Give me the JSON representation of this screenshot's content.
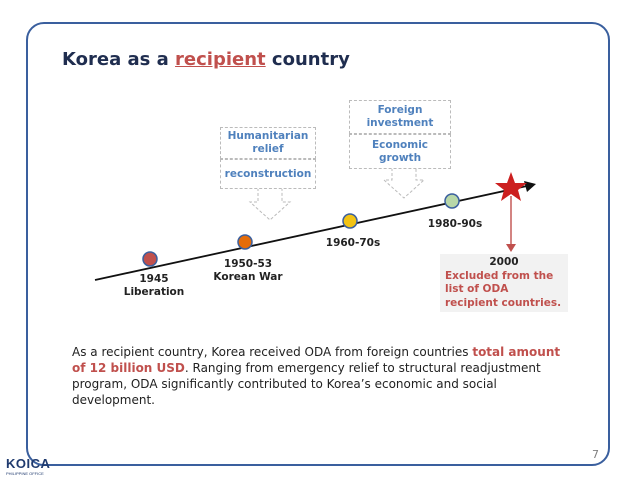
{
  "title": {
    "prefix": "Korea as a ",
    "highlight": "recipient",
    "suffix": " country"
  },
  "timeline": {
    "points": [
      {
        "label": "1945\nLiberation",
        "color": "#c0504d"
      },
      {
        "label": "1950-53\nKorean War",
        "color": "#e46c0a"
      },
      {
        "label": "1960-70s",
        "color": "#f2c314"
      },
      {
        "label": "1980-90s",
        "color": "#b8d7a8"
      }
    ],
    "star_color": "#cc1f1f"
  },
  "callouts": {
    "humanitarian": "Humanitarian\nrelief",
    "reconstruction": "reconstruction",
    "foreign_investment": "Foreign\ninvestment",
    "economic_growth": "Economic\ngrowth"
  },
  "milestone_2000": {
    "year": "2000",
    "text": "Excluded from the list of ODA recipient countries."
  },
  "body": {
    "part1": "As a recipient country, Korea received ODA from foreign countries ",
    "emphasis": "total amount of 12 billion USD",
    "part2": ". Ranging from emergency relief to structural readjustment program, ODA significantly contributed to Korea’s economic and social development."
  },
  "page_number": "7",
  "logo": {
    "name": "KOICA",
    "subtitle": "PHILIPPINE OFFICE"
  }
}
